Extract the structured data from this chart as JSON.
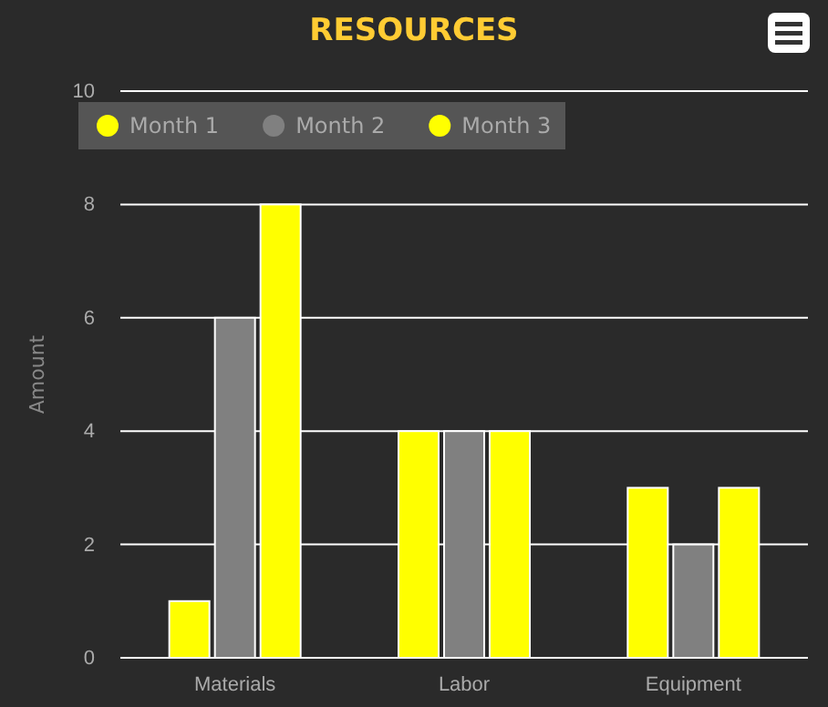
{
  "chart_data": {
    "type": "bar",
    "title": "RESOURCES",
    "ylabel": "Amount",
    "categories": [
      "Materials",
      "Labor",
      "Equipment"
    ],
    "series": [
      {
        "name": "Month 1",
        "color": "#ffff00",
        "values": [
          1,
          4,
          3
        ]
      },
      {
        "name": "Month 2",
        "color": "#808080",
        "values": [
          6,
          4,
          2
        ]
      },
      {
        "name": "Month 3",
        "color": "#ffff00",
        "values": [
          8,
          4,
          3
        ]
      }
    ],
    "ylim": [
      0,
      10
    ],
    "yticks": [
      0,
      2,
      4,
      6,
      8,
      10
    ],
    "grid": "y",
    "legend": "top left"
  }
}
